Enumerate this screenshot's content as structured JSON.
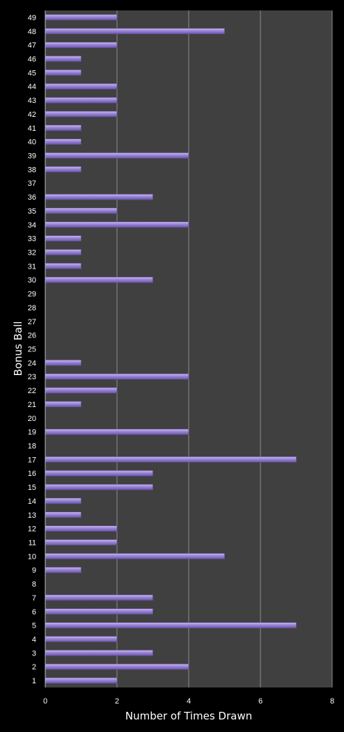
{
  "chart_data": {
    "type": "bar",
    "orientation": "horizontal",
    "xlabel": "Number of Times Drawn",
    "ylabel": "Bonus Ball",
    "xlim": [
      0,
      8
    ],
    "xticks": [
      0,
      2,
      4,
      6,
      8
    ],
    "grid": "vertical",
    "colors": {
      "background": "#000000",
      "plot_area": "#404040",
      "bar": "#8f78c8",
      "bar_edge": "#5d4a96",
      "gridline": "#8c8c8c",
      "text": "#ffffff"
    },
    "categories": [
      "1",
      "2",
      "3",
      "4",
      "5",
      "6",
      "7",
      "8",
      "9",
      "10",
      "11",
      "12",
      "13",
      "14",
      "15",
      "16",
      "17",
      "18",
      "19",
      "20",
      "21",
      "22",
      "23",
      "24",
      "25",
      "26",
      "27",
      "28",
      "29",
      "30",
      "31",
      "32",
      "33",
      "34",
      "35",
      "36",
      "37",
      "38",
      "39",
      "40",
      "41",
      "42",
      "43",
      "44",
      "45",
      "46",
      "47",
      "48",
      "49"
    ],
    "values": [
      2,
      4,
      3,
      2,
      7,
      3,
      3,
      0,
      1,
      5,
      2,
      2,
      1,
      1,
      3,
      3,
      7,
      0,
      4,
      0,
      1,
      2,
      4,
      1,
      0,
      0,
      0,
      0,
      0,
      3,
      1,
      1,
      1,
      4,
      2,
      3,
      0,
      1,
      4,
      1,
      1,
      2,
      2,
      2,
      1,
      1,
      2,
      5,
      2
    ]
  }
}
